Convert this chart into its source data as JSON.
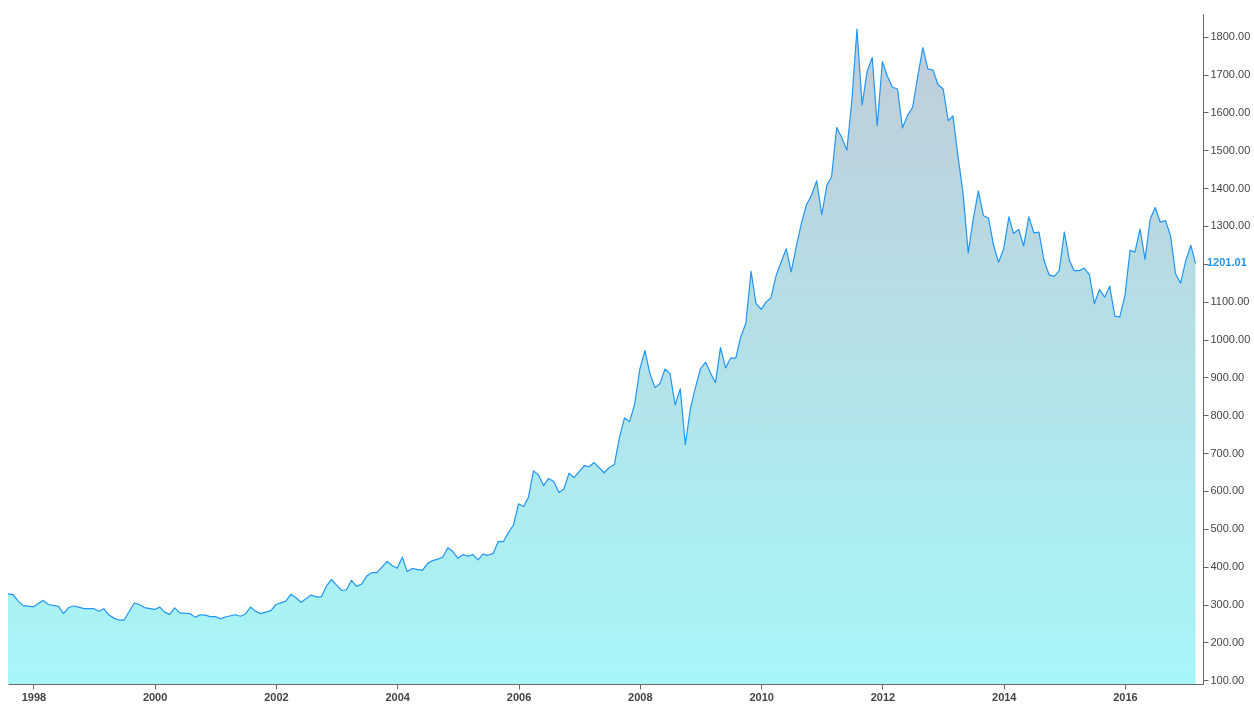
{
  "chart_data": {
    "type": "area",
    "x": [
      "1997-08",
      "1997-09",
      "1997-10",
      "1997-11",
      "1998-01",
      "1998-03",
      "1998-04",
      "1998-06",
      "1998-07",
      "1998-08",
      "1998-09",
      "1998-10",
      "1998-11",
      "1999-01",
      "1999-02",
      "1999-03",
      "1999-04",
      "1999-05",
      "1999-06",
      "1999-07",
      "1999-09",
      "1999-10",
      "1999-11",
      "2000-01",
      "2000-02",
      "2000-03",
      "2000-04",
      "2000-05",
      "2000-06",
      "2000-08",
      "2000-09",
      "2000-10",
      "2000-11",
      "2000-12",
      "2001-01",
      "2001-02",
      "2001-03",
      "2001-05",
      "2001-06",
      "2001-07",
      "2001-08",
      "2001-09",
      "2001-10",
      "2001-12",
      "2002-01",
      "2002-03",
      "2002-04",
      "2002-05",
      "2002-06",
      "2002-08",
      "2002-09",
      "2002-10",
      "2002-11",
      "2002-12",
      "2003-01",
      "2003-02",
      "2003-03",
      "2003-04",
      "2003-05",
      "2003-06",
      "2003-07",
      "2003-08",
      "2003-09",
      "2003-11",
      "2003-12",
      "2004-01",
      "2004-02",
      "2004-03",
      "2004-04",
      "2004-06",
      "2004-07",
      "2004-08",
      "2004-09",
      "2004-10",
      "2004-11",
      "2004-12",
      "2005-01",
      "2005-02",
      "2005-03",
      "2005-04",
      "2005-05",
      "2005-06",
      "2005-07",
      "2005-08",
      "2005-09",
      "2005-10",
      "2005-11",
      "2005-12",
      "2006-01",
      "2006-02",
      "2006-03",
      "2006-04",
      "2006-05",
      "2006-06",
      "2006-07",
      "2006-08",
      "2006-09",
      "2006-10",
      "2006-11",
      "2006-12",
      "2007-02",
      "2007-03",
      "2007-04",
      "2007-06",
      "2007-07",
      "2007-08",
      "2007-09",
      "2007-10",
      "2007-11",
      "2007-12",
      "2008-01",
      "2008-02",
      "2008-03",
      "2008-04",
      "2008-05",
      "2008-06",
      "2008-07",
      "2008-08",
      "2008-09",
      "2008-10",
      "2008-11",
      "2008-12",
      "2009-01",
      "2009-02",
      "2009-03",
      "2009-04",
      "2009-05",
      "2009-06",
      "2009-07",
      "2009-08",
      "2009-09",
      "2009-10",
      "2009-11",
      "2009-12",
      "2010-01",
      "2010-02",
      "2010-03",
      "2010-04",
      "2010-05",
      "2010-06",
      "2010-07",
      "2010-08",
      "2010-09",
      "2010-10",
      "2010-11",
      "2010-12",
      "2011-01",
      "2011-02",
      "2011-03",
      "2011-04",
      "2011-05",
      "2011-06",
      "2011-07",
      "2011-08",
      "2011-09",
      "2011-10",
      "2011-11",
      "2011-12",
      "2012-01",
      "2012-02",
      "2012-03",
      "2012-04",
      "2012-05",
      "2012-06",
      "2012-07",
      "2012-08",
      "2012-09",
      "2012-10",
      "2012-11",
      "2012-12",
      "2013-01",
      "2013-02",
      "2013-03",
      "2013-04",
      "2013-05",
      "2013-06",
      "2013-07",
      "2013-08",
      "2013-09",
      "2013-10",
      "2013-11",
      "2013-12",
      "2014-01",
      "2014-02",
      "2014-03",
      "2014-04",
      "2014-05",
      "2014-06",
      "2014-07",
      "2014-08",
      "2014-09",
      "2014-10",
      "2014-11",
      "2014-12",
      "2015-01",
      "2015-02",
      "2015-03",
      "2015-04",
      "2015-05",
      "2015-06",
      "2015-07",
      "2015-08",
      "2015-09",
      "2015-10",
      "2015-11",
      "2015-12",
      "2016-01",
      "2016-02",
      "2016-03",
      "2016-04",
      "2016-05",
      "2016-06",
      "2016-07",
      "2016-08",
      "2016-09",
      "2016-10",
      "2016-11",
      "2016-12",
      "2017-01",
      "2017-02",
      "2017-03"
    ],
    "series": [
      {
        "color": "#2196f3",
        "values": [
          328,
          326,
          309,
          297,
          294,
          311,
          300,
          295,
          276,
          292,
          296,
          293,
          289,
          289,
          282,
          289,
          272,
          264,
          259,
          259,
          304,
          300,
          292,
          287,
          293,
          280,
          274,
          291,
          278,
          276,
          266,
          273,
          272,
          268,
          268,
          262,
          267,
          273,
          269,
          275,
          293,
          282,
          276,
          284,
          300,
          309,
          327,
          318,
          306,
          325,
          320,
          320,
          349,
          366,
          351,
          337,
          339,
          364,
          348,
          354,
          375,
          384,
          384,
          414,
          403,
          396,
          425,
          387,
          395,
          390,
          408,
          416,
          420,
          425,
          450,
          440,
          422,
          432,
          428,
          432,
          418,
          433,
          430,
          435,
          467,
          466,
          490,
          510,
          566,
          559,
          583,
          653,
          642,
          614,
          633,
          625,
          596,
          605,
          647,
          635,
          667,
          664,
          675,
          648,
          662,
          670,
          742,
          793,
          783,
          829,
          921,
          971,
          912,
          873,
          883,
          922,
          910,
          827,
          870,
          722,
          818,
          873,
          923,
          940,
          912,
          886,
          979,
          925,
          951,
          951,
          1008,
          1043,
          1180,
          1095,
          1080,
          1100,
          1110,
          1169,
          1204,
          1240,
          1179,
          1247,
          1308,
          1356,
          1382,
          1419,
          1330,
          1408,
          1430,
          1560,
          1534,
          1500,
          1630,
          1820,
          1620,
          1708,
          1745,
          1565,
          1734,
          1695,
          1667,
          1662,
          1559,
          1593,
          1613,
          1695,
          1771,
          1715,
          1712,
          1673,
          1662,
          1578,
          1591,
          1482,
          1386,
          1229,
          1317,
          1393,
          1327,
          1321,
          1249,
          1204,
          1240,
          1324,
          1280,
          1291,
          1247,
          1324,
          1282,
          1284,
          1208,
          1171,
          1167,
          1182,
          1284,
          1208,
          1182,
          1182,
          1189,
          1171,
          1095,
          1132,
          1112,
          1141,
          1062,
          1060,
          1116,
          1236,
          1231,
          1292,
          1212,
          1318,
          1349,
          1310,
          1314,
          1275,
          1173,
          1149,
          1208,
          1249,
          1201.01
        ]
      }
    ],
    "xlim": [
      "1997-08",
      "2017-04-15"
    ],
    "xticks": [
      "1998",
      "2000",
      "2002",
      "2004",
      "2006",
      "2008",
      "2010",
      "2012",
      "2014",
      "2016"
    ],
    "ylim": [
      90,
      1860
    ],
    "yticks": [
      {
        "value": 100,
        "label": "100.00"
      },
      {
        "value": 200,
        "label": "200.00"
      },
      {
        "value": 300,
        "label": "300.00"
      },
      {
        "value": 400,
        "label": "400.00"
      },
      {
        "value": 500,
        "label": "500.00"
      },
      {
        "value": 600,
        "label": "600.00"
      },
      {
        "value": 700,
        "label": "700.00"
      },
      {
        "value": 800,
        "label": "800.00"
      },
      {
        "value": 900,
        "label": "900.00"
      },
      {
        "value": 1000,
        "label": "1000.00"
      },
      {
        "value": 1100,
        "label": "1100.00"
      },
      {
        "value": 1200,
        "label": null
      },
      {
        "value": 1300,
        "label": "1300.00"
      },
      {
        "value": 1400,
        "label": "1400.00"
      },
      {
        "value": 1500,
        "label": "1500.00"
      },
      {
        "value": 1600,
        "label": "1600.00"
      },
      {
        "value": 1700,
        "label": "1700.00"
      },
      {
        "value": 1800,
        "label": "1800.00"
      }
    ],
    "annotations": [
      "1201.01"
    ],
    "grid": false
  }
}
